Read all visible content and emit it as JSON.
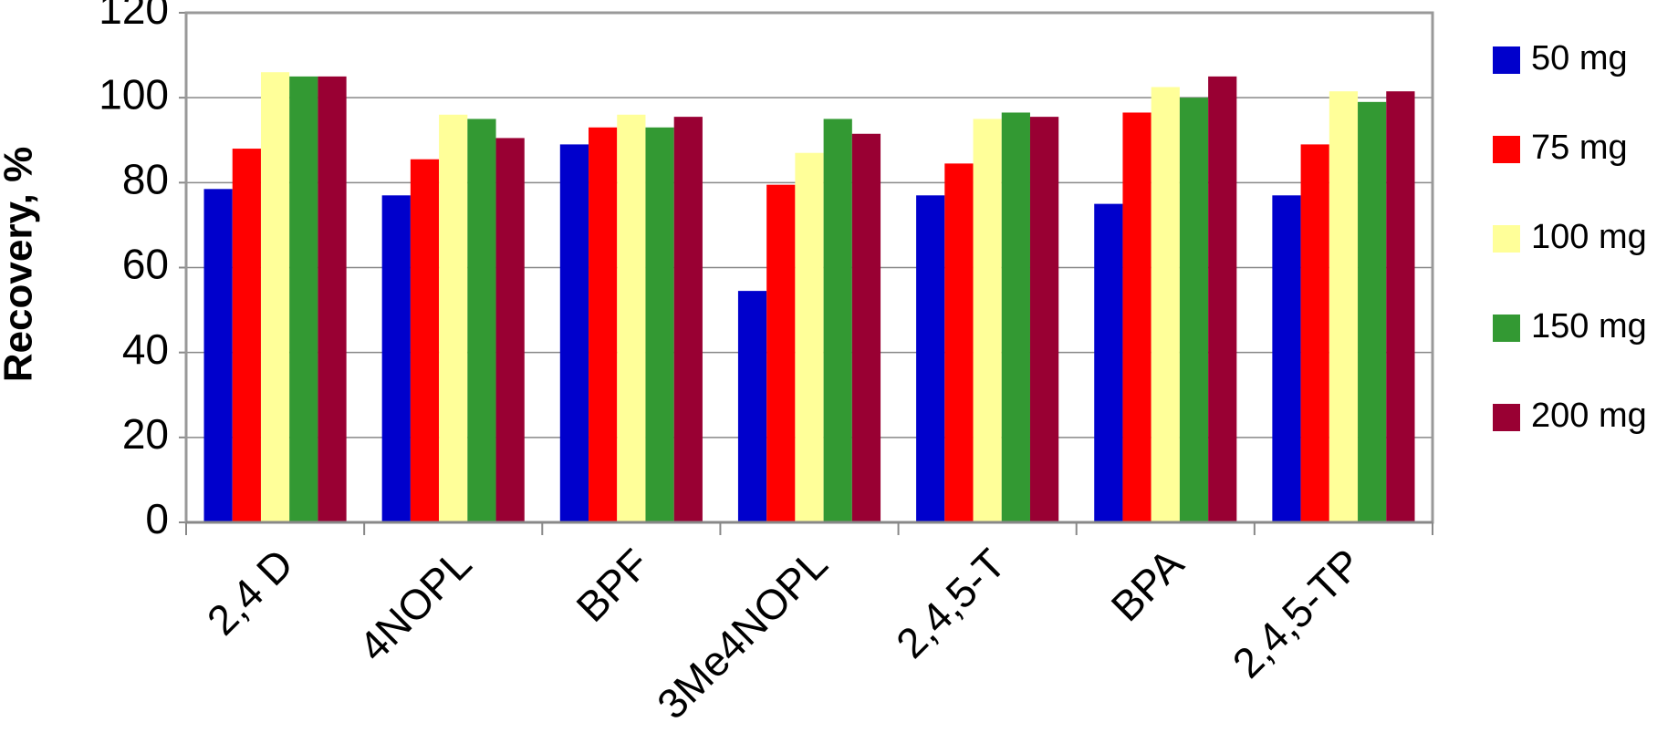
{
  "chart_data": {
    "type": "bar",
    "y_label": "Recovery, %",
    "categories": [
      "2,4 D",
      "4NOPL",
      "BPF",
      "3Me4NOPL",
      "2,4,5-T",
      "BPA",
      "2,4,5-TP"
    ],
    "series": [
      {
        "name": "50 mg",
        "color": "#0000cc",
        "values": [
          78.5,
          77,
          89,
          54.5,
          77,
          75,
          77
        ]
      },
      {
        "name": "75 mg",
        "color": "#ff0000",
        "values": [
          88,
          85.5,
          93,
          79.5,
          84.5,
          96.5,
          89
        ]
      },
      {
        "name": "100 mg",
        "color": "#ffff99",
        "values": [
          106,
          96,
          96,
          87,
          95,
          102.5,
          101.5
        ]
      },
      {
        "name": "150 mg",
        "color": "#339933",
        "values": [
          105,
          95,
          93,
          95,
          96.5,
          100,
          99
        ]
      },
      {
        "name": "200 mg",
        "color": "#990033",
        "values": [
          105,
          90.5,
          95.5,
          91.5,
          95.5,
          105,
          101.5
        ]
      }
    ],
    "ylim": [
      0,
      120
    ],
    "yticks": [
      0,
      20,
      40,
      60,
      80,
      100,
      120
    ],
    "grid": true,
    "legend": "right"
  }
}
